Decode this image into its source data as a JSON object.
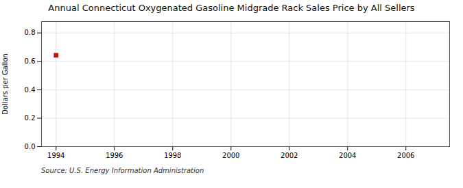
{
  "chart_data": {
    "type": "scatter",
    "title": "Annual Connecticut Oxygenated Gasoline Midgrade Rack Sales Price by All Sellers",
    "ylabel": "Dollars per Gallon",
    "source": "Source: U.S. Energy Information Administration",
    "x": [
      1994
    ],
    "values": [
      0.643
    ],
    "color": "#cc1111",
    "marker": "square",
    "xlim": [
      1993.5,
      2007.5
    ],
    "ylim": [
      0.0,
      0.88
    ],
    "xticks": [
      1994,
      1996,
      1998,
      2000,
      2002,
      2004,
      2006
    ],
    "yticks": [
      {
        "value": 0.0,
        "label": "0.0"
      },
      0.2,
      0.4,
      0.6,
      0.8
    ],
    "grid": true
  }
}
